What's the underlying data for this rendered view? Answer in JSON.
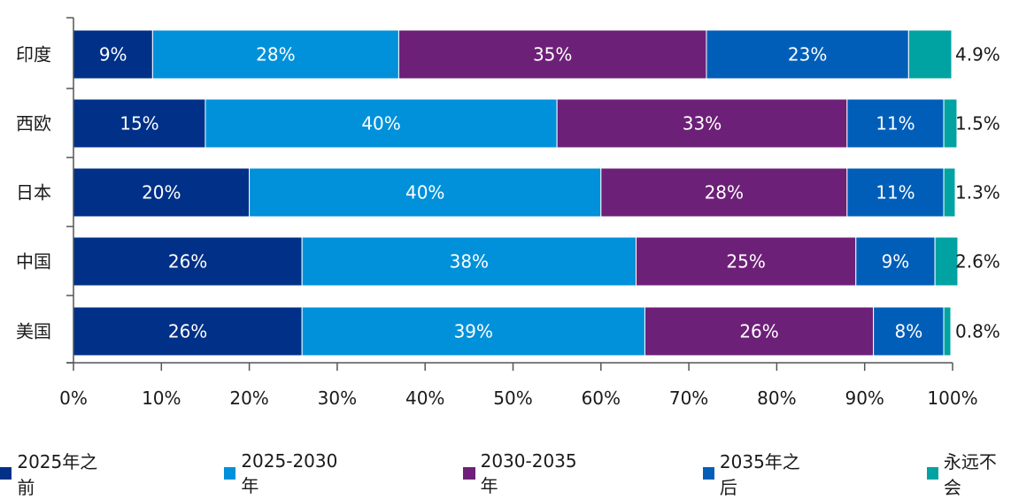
{
  "chart_data": {
    "type": "bar",
    "orientation": "horizontal",
    "stacked": true,
    "title": "",
    "xlabel": "",
    "ylabel": "",
    "xlim": [
      0,
      100
    ],
    "x_ticks": [
      "0%",
      "10%",
      "20%",
      "30%",
      "40%",
      "50%",
      "60%",
      "70%",
      "80%",
      "90%",
      "100%"
    ],
    "grid": false,
    "legend_position": "bottom",
    "categories": [
      "印度",
      "西欧",
      "日本",
      "中国",
      "美国"
    ],
    "series": [
      {
        "name": "2025年之前",
        "color": "#003087",
        "values": [
          9,
          15,
          20,
          26,
          26
        ],
        "labels": [
          "9%",
          "15%",
          "20%",
          "26%",
          "26%"
        ]
      },
      {
        "name": "2025-2030年",
        "color": "#0091DA",
        "values": [
          28,
          40,
          40,
          38,
          39
        ],
        "labels": [
          "28%",
          "40%",
          "40%",
          "38%",
          "39%"
        ]
      },
      {
        "name": "2030-2035年",
        "color": "#6D2077",
        "values": [
          35,
          33,
          28,
          25,
          26
        ],
        "labels": [
          "35%",
          "33%",
          "28%",
          "25%",
          "26%"
        ]
      },
      {
        "name": "2035年之后",
        "color": "#005EB8",
        "values": [
          23,
          11,
          11,
          9,
          8
        ],
        "labels": [
          "23%",
          "11%",
          "11%",
          "9%",
          "8%"
        ]
      },
      {
        "name": "永远不会",
        "color": "#00A3A1",
        "values": [
          4.9,
          1.5,
          1.3,
          2.6,
          0.8
        ],
        "labels": [
          "4.9%",
          "1.5%",
          "1.3%",
          "2.6%",
          "0.8%"
        ]
      }
    ]
  }
}
